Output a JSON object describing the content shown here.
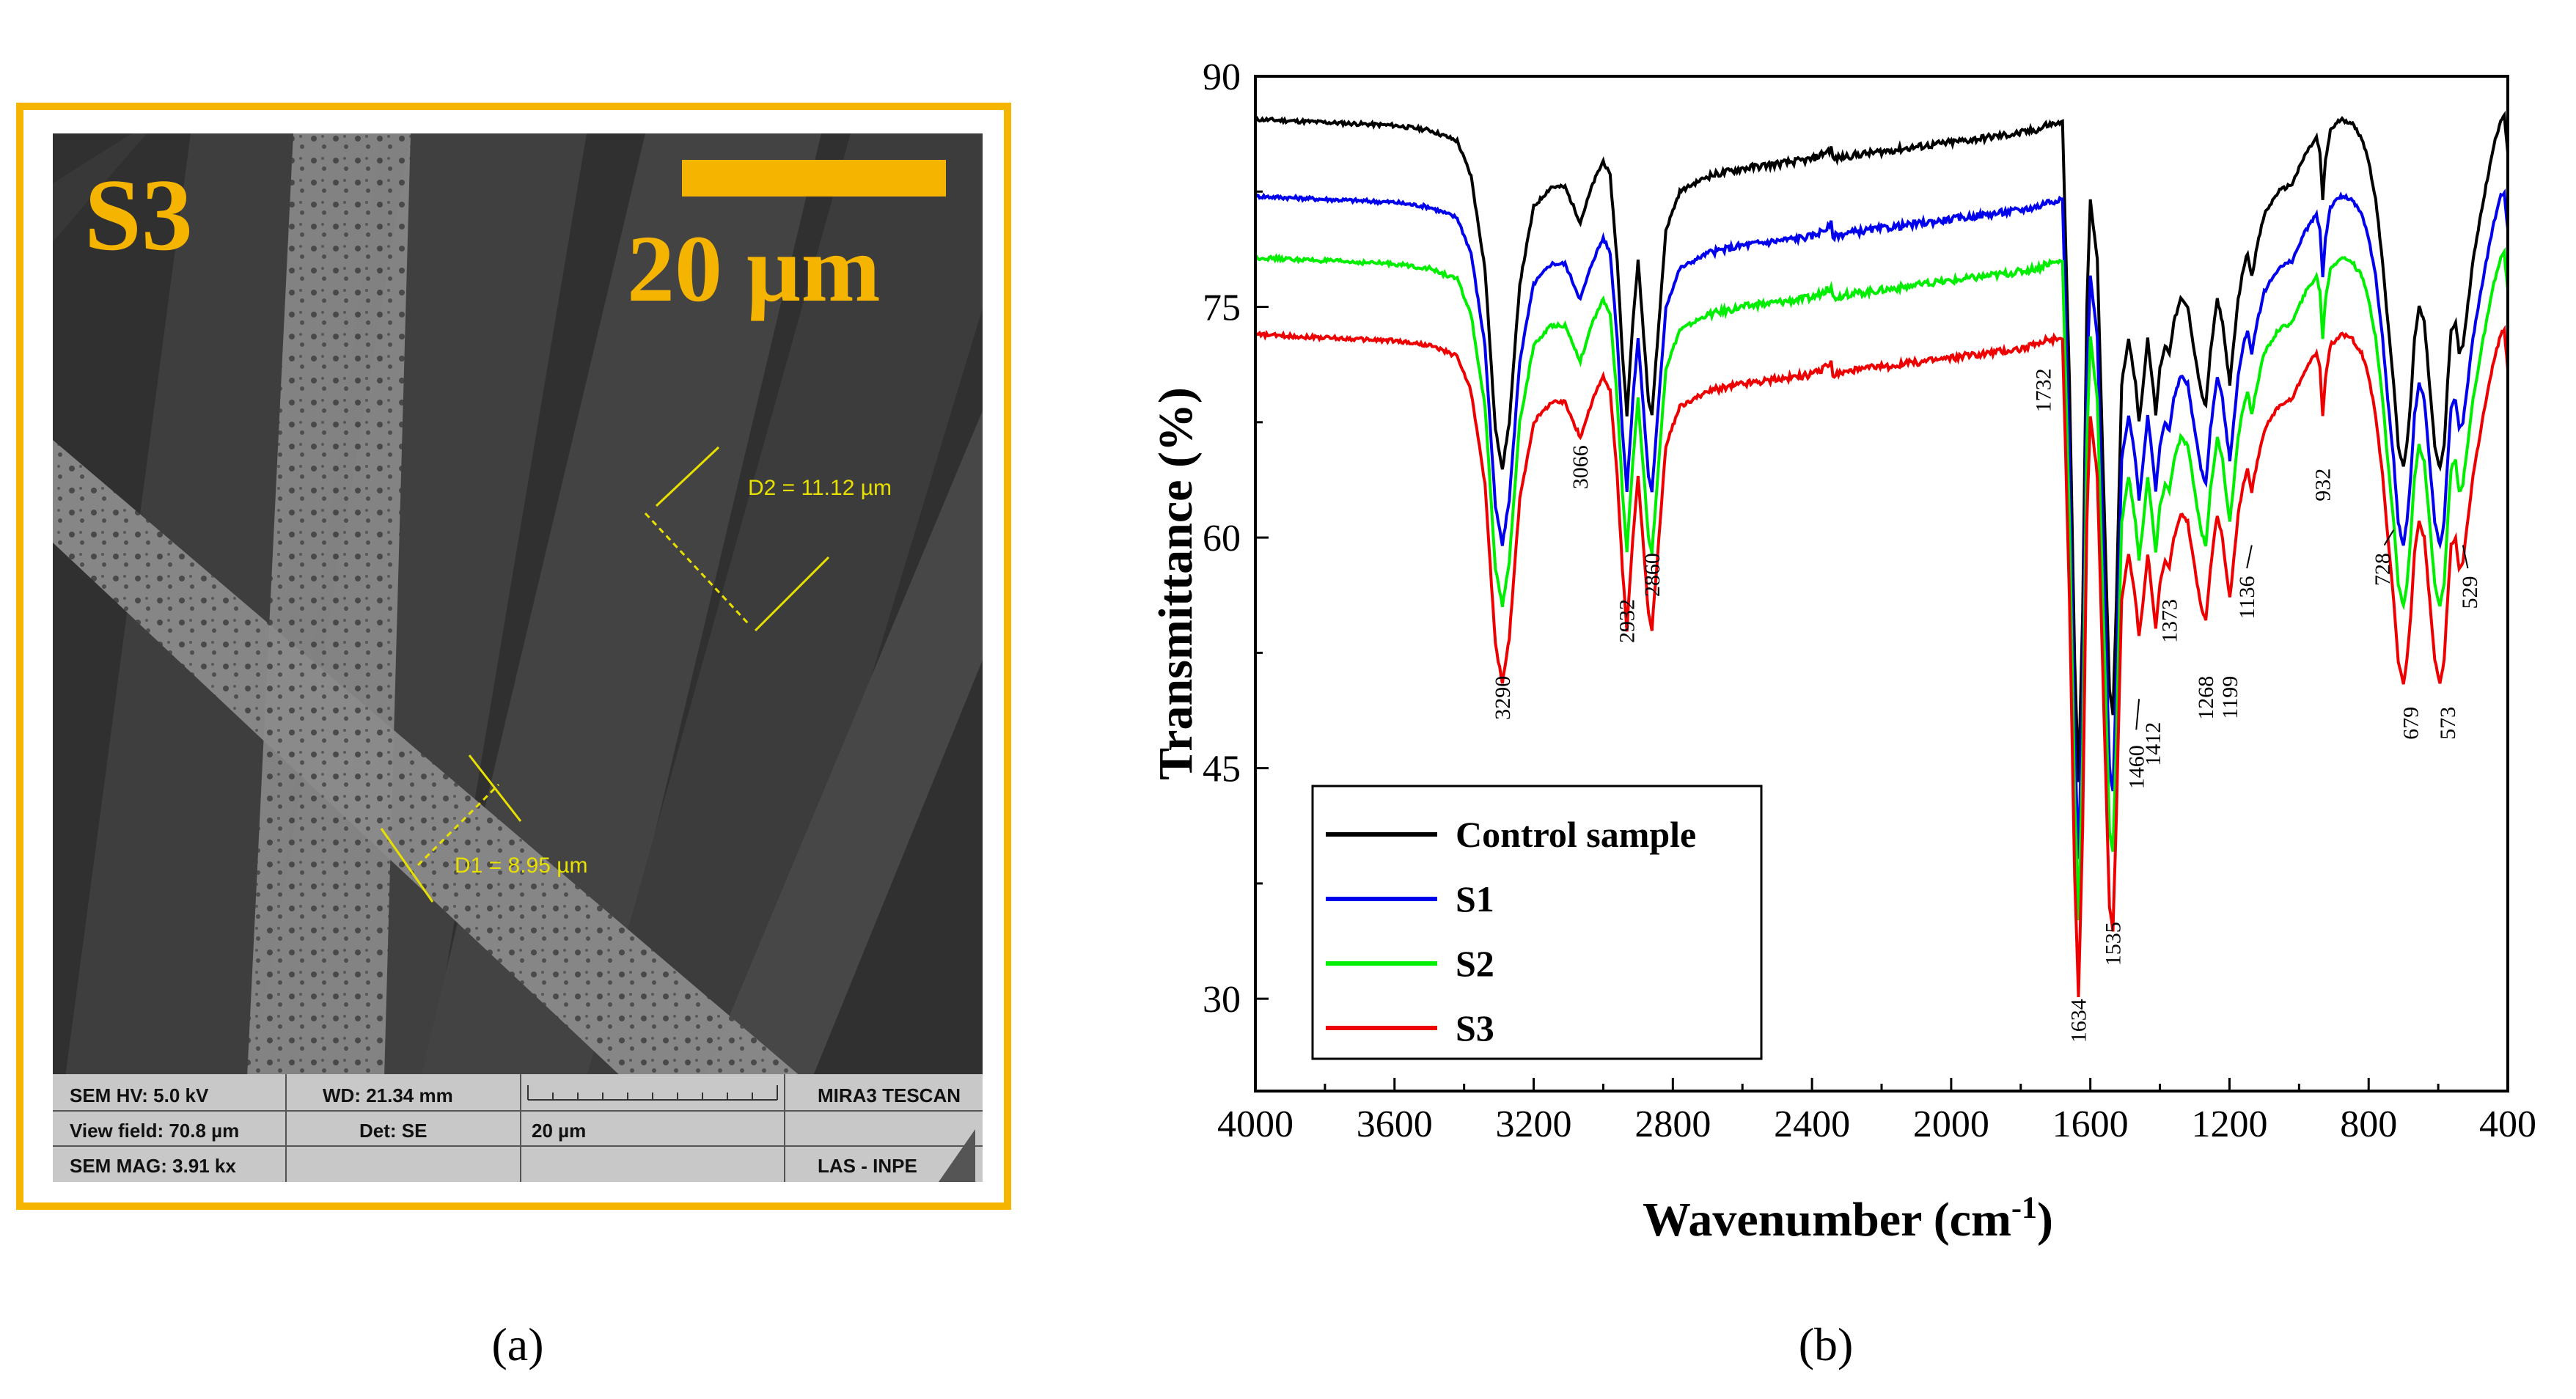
{
  "panel_a": {
    "label": "(a)",
    "sample_tag": "S3",
    "scale_bar_text": "20 µm",
    "measure_d1": "D1 = 8.95 µm",
    "measure_d2": "D2 = 11.12 µm",
    "info": {
      "hv": "SEM HV: 5.0 kV",
      "wd": "WD: 21.34 mm",
      "brand": "MIRA3 TESCAN",
      "view_field": "View field: 70.8 µm",
      "det": "Det: SE",
      "scale": "20 µm",
      "mag": "SEM MAG: 3.91 kx",
      "lab": "LAS - INPE"
    },
    "colors": {
      "frame": "#f5b400",
      "measure": "#e8e000"
    }
  },
  "panel_b": {
    "label": "(b)"
  },
  "chart_data": {
    "type": "line",
    "xlabel": "Wavenumber (cm",
    "xlabel_sup": "-1",
    "xlabel_close": ")",
    "ylabel": "Transmittance (%)",
    "xlim": [
      4000,
      400
    ],
    "ylim": [
      24,
      90
    ],
    "x_ticks": [
      4000,
      3600,
      3200,
      2800,
      2400,
      2000,
      1600,
      1200,
      800,
      400
    ],
    "y_ticks": [
      30,
      45,
      60,
      75,
      90
    ],
    "grid": false,
    "legend_position": "bottom-left",
    "series": [
      {
        "name": "Control sample",
        "color": "#000000",
        "offset": 0
      },
      {
        "name": "S1",
        "color": "#0000ee",
        "offset": -5
      },
      {
        "name": "S2",
        "color": "#00ee00",
        "offset": -9
      },
      {
        "name": "S3",
        "color": "#ee0000",
        "offset": -14
      }
    ],
    "base_curve": {
      "x": [
        4000,
        3900,
        3800,
        3700,
        3600,
        3500,
        3420,
        3380,
        3340,
        3310,
        3290,
        3270,
        3240,
        3200,
        3150,
        3110,
        3066,
        3030,
        3000,
        2980,
        2960,
        2945,
        2932,
        2915,
        2900,
        2880,
        2870,
        2860,
        2845,
        2820,
        2780,
        2700,
        2600,
        2500,
        2400,
        2350,
        2345,
        2340,
        2300,
        2200,
        2100,
        2000,
        1900,
        1800,
        1740,
        1732,
        1700,
        1680,
        1660,
        1645,
        1634,
        1622,
        1610,
        1600,
        1580,
        1560,
        1545,
        1535,
        1525,
        1510,
        1490,
        1470,
        1460,
        1448,
        1435,
        1423,
        1412,
        1400,
        1385,
        1373,
        1360,
        1340,
        1320,
        1300,
        1282,
        1268,
        1255,
        1235,
        1220,
        1210,
        1199,
        1188,
        1175,
        1160,
        1148,
        1136,
        1120,
        1100,
        1060,
        1020,
        980,
        950,
        940,
        932,
        924,
        910,
        880,
        850,
        820,
        800,
        780,
        760,
        745,
        728,
        715,
        700,
        690,
        679,
        668,
        655,
        640,
        625,
        610,
        595,
        583,
        573,
        563,
        550,
        540,
        529,
        518,
        500,
        470,
        440,
        420,
        410,
        400
      ],
      "y": [
        87.2,
        87.1,
        87.0,
        86.9,
        86.8,
        86.5,
        85.8,
        83.5,
        77.5,
        67.0,
        64.5,
        67.5,
        76.5,
        81.5,
        82.8,
        82.8,
        80.5,
        83.0,
        84.5,
        83.5,
        78.0,
        72.0,
        68.0,
        74.0,
        78.0,
        72.0,
        69.0,
        68.0,
        72.5,
        80.0,
        82.5,
        83.5,
        84.0,
        84.3,
        84.6,
        85.2,
        85.4,
        84.6,
        84.8,
        85.1,
        85.4,
        85.7,
        86.0,
        86.3,
        86.6,
        86.8,
        86.9,
        87.0,
        70.0,
        52.0,
        44.0,
        55.0,
        75.0,
        82.0,
        78.0,
        62.0,
        50.0,
        48.5,
        56.0,
        70.0,
        73.0,
        70.0,
        67.5,
        70.0,
        73.0,
        70.5,
        68.0,
        71.0,
        72.5,
        72.0,
        74.0,
        75.5,
        75.0,
        72.0,
        69.5,
        68.5,
        72.0,
        75.5,
        74.0,
        72.0,
        70.0,
        72.5,
        75.5,
        77.5,
        78.5,
        77.0,
        79.0,
        81.0,
        82.5,
        83.0,
        85.0,
        86.0,
        85.0,
        82.0,
        84.5,
        86.5,
        87.2,
        87.0,
        86.0,
        84.5,
        82.0,
        78.0,
        74.0,
        70.0,
        66.0,
        64.5,
        66.0,
        69.0,
        73.0,
        75.0,
        74.0,
        70.0,
        66.0,
        64.5,
        66.0,
        70.0,
        73.5,
        74.0,
        72.0,
        72.5,
        74.5,
        78.0,
        82.0,
        85.5,
        87.2,
        87.5,
        85.0
      ]
    },
    "annotations": [
      {
        "text": "3290",
        "x": 3290,
        "y": 51
      },
      {
        "text": "3066",
        "x": 3066,
        "y": 66
      },
      {
        "text": "2932",
        "x": 2932,
        "y": 56
      },
      {
        "text": "2860",
        "x": 2860,
        "y": 59
      },
      {
        "text": "1732",
        "x": 1735,
        "y": 71
      },
      {
        "text": "1634",
        "x": 1634,
        "y": 30
      },
      {
        "text": "1535",
        "x": 1535,
        "y": 35
      },
      {
        "text": "1460",
        "x": 1468,
        "y": 46.5
      },
      {
        "text": "1412",
        "x": 1420,
        "y": 48
      },
      {
        "text": "1373",
        "x": 1373,
        "y": 56
      },
      {
        "text": "1268",
        "x": 1268,
        "y": 51
      },
      {
        "text": "1199",
        "x": 1199,
        "y": 51
      },
      {
        "text": "1136",
        "x": 1150,
        "y": 57.5
      },
      {
        "text": "932",
        "x": 932,
        "y": 64.5
      },
      {
        "text": "728",
        "x": 760,
        "y": 59
      },
      {
        "text": "679",
        "x": 679,
        "y": 49
      },
      {
        "text": "573",
        "x": 573,
        "y": 49
      },
      {
        "text": "529",
        "x": 510,
        "y": 57.5
      }
    ]
  }
}
